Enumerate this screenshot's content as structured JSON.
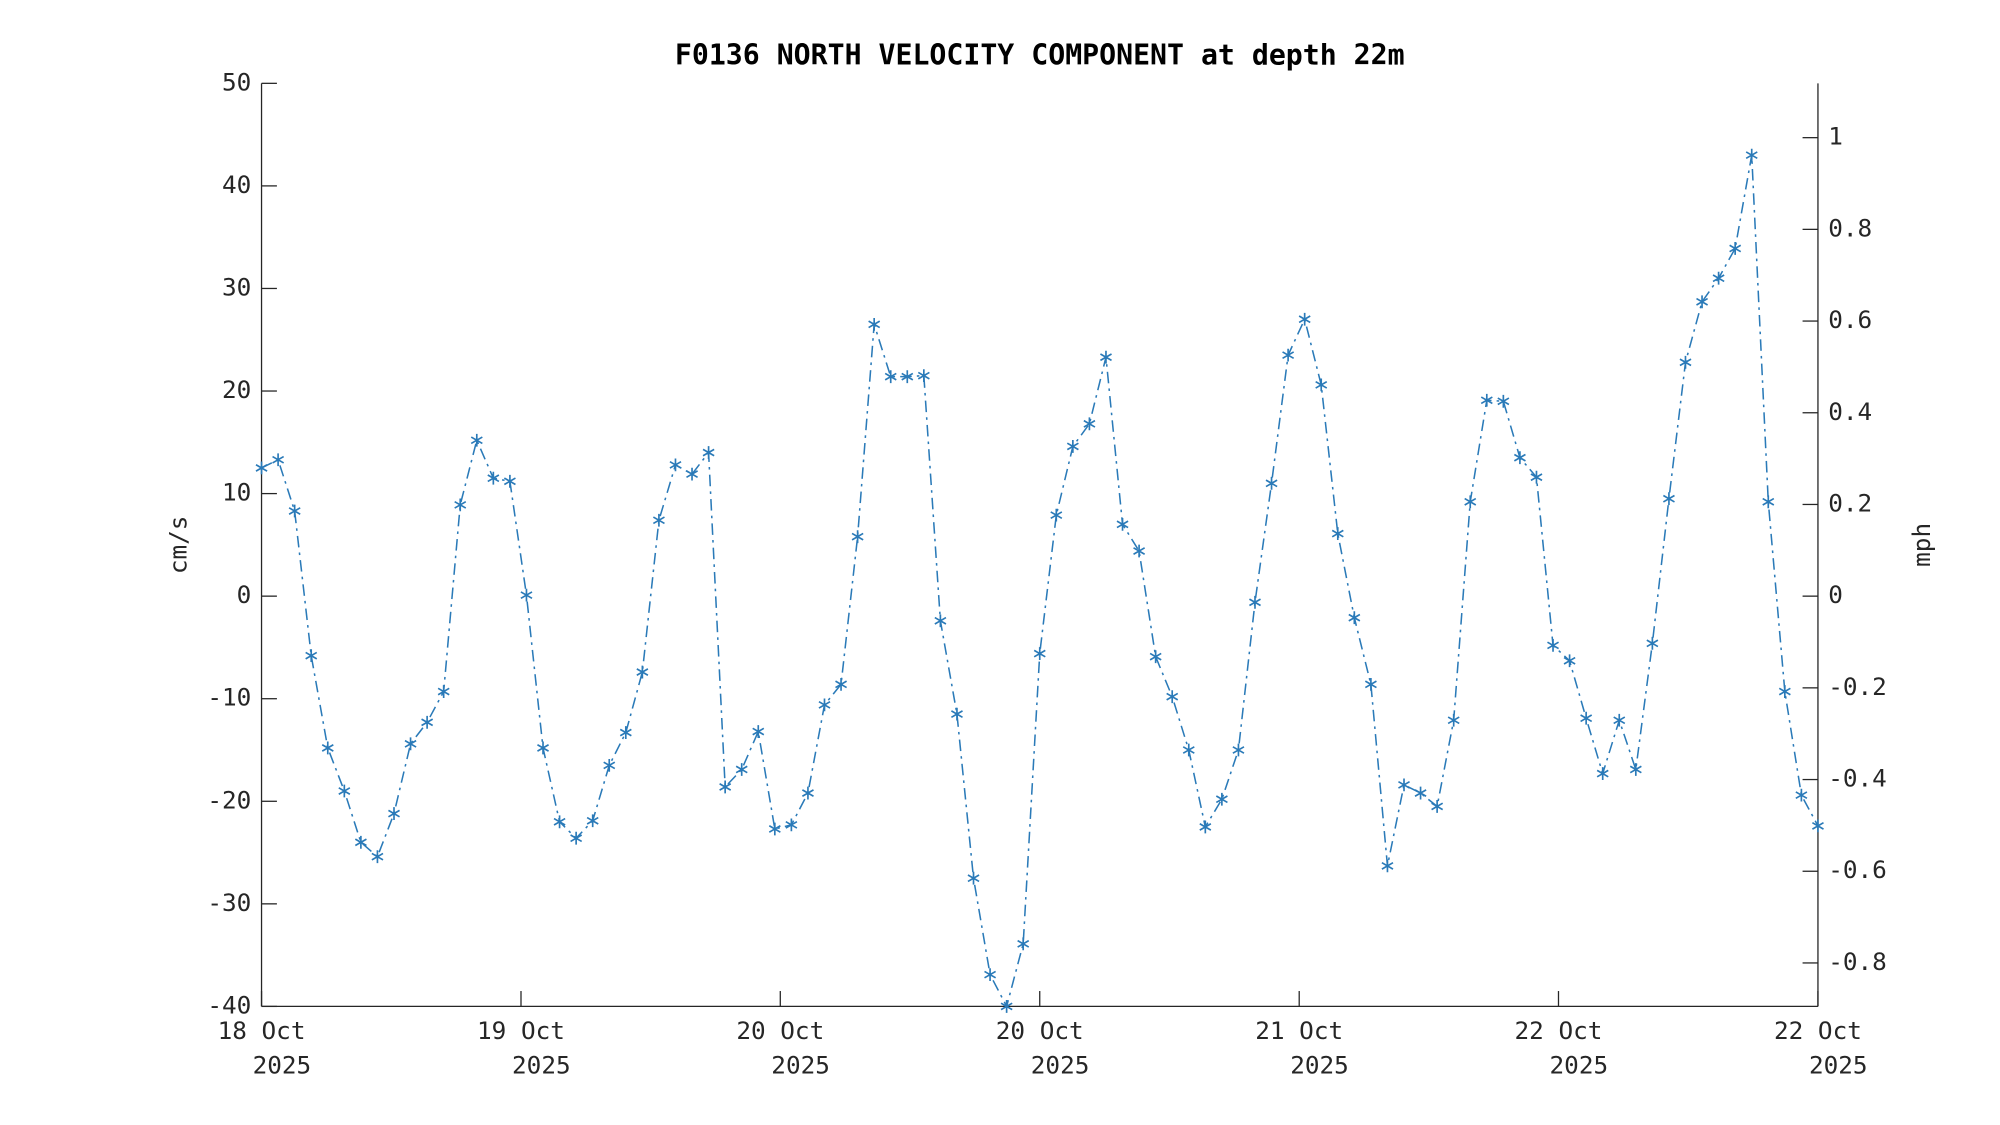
{
  "chart_data": {
    "type": "line",
    "title": "F0136 NORTH VELOCITY COMPONENT at depth 22m",
    "ylabel": "cm/s",
    "y2label": "mph",
    "color": "#2a7ab8",
    "marker": "*",
    "line_style": "dashdot",
    "x": [
      0,
      1,
      2,
      3,
      4,
      5,
      6,
      7,
      8,
      9,
      10,
      11,
      12,
      13,
      14,
      15,
      16,
      17,
      18,
      19,
      20,
      21,
      22,
      23,
      24,
      25,
      26,
      27,
      28,
      29,
      30,
      31,
      32,
      33,
      34,
      35,
      36,
      37,
      38,
      39,
      40,
      41,
      42,
      43,
      44,
      45,
      46,
      47,
      48,
      49,
      50,
      51,
      52,
      53,
      54,
      55,
      56,
      57,
      58,
      59,
      60,
      61,
      62,
      63,
      64,
      65,
      66,
      67,
      68,
      69,
      70,
      71,
      72,
      73,
      74,
      75,
      76,
      77,
      78,
      79,
      80,
      81,
      82,
      83,
      84,
      85,
      86,
      87,
      88,
      89,
      90,
      91,
      92,
      93,
      94
    ],
    "values": [
      12.5,
      13.3,
      8.3,
      -5.8,
      -14.8,
      -19,
      -24,
      -25.4,
      -21.2,
      -14.4,
      -12.3,
      -9.3,
      8.9,
      15.2,
      11.5,
      11.2,
      0.1,
      -14.8,
      -22,
      -23.6,
      -21.9,
      -16.5,
      -13.3,
      -7.4,
      7.4,
      12.8,
      11.9,
      14,
      -18.6,
      -16.9,
      -13.2,
      -22.7,
      -22.3,
      -19.2,
      -10.6,
      -8.6,
      5.8,
      26.5,
      21.4,
      21.4,
      21.5,
      -2.4,
      -11.5,
      -27.5,
      -36.9,
      -40,
      -33.9,
      -5.6,
      7.9,
      14.6,
      16.8,
      23.3,
      7,
      4.4,
      -5.9,
      -9.8,
      -15,
      -22.5,
      -19.8,
      -15,
      -0.6,
      11,
      23.5,
      27,
      20.6,
      6.1,
      -2.1,
      -8.6,
      -26.3,
      -18.4,
      -19.2,
      -20.5,
      -12.1,
      9.2,
      19.1,
      19,
      13.5,
      11.6,
      -4.8,
      -6.3,
      -11.9,
      -17.3,
      -12.1,
      -16.9,
      -4.6,
      9.5,
      22.8,
      28.7,
      31,
      33.9,
      43,
      9.2,
      -9.3,
      -19.4,
      -22.4
    ],
    "xlim": [
      0,
      94
    ],
    "xticks": [
      {
        "value": 0,
        "label": [
          "18 Oct",
          "2025"
        ]
      },
      {
        "value": 15.67,
        "label": [
          "19 Oct",
          "2025"
        ]
      },
      {
        "value": 31.33,
        "label": [
          "20 Oct",
          "2025"
        ]
      },
      {
        "value": 47,
        "label": [
          "20 Oct",
          "2025"
        ]
      },
      {
        "value": 62.67,
        "label": [
          "21 Oct",
          "2025"
        ]
      },
      {
        "value": 78.33,
        "label": [
          "22 Oct",
          "2025"
        ]
      },
      {
        "value": 94,
        "label": [
          "22 Oct",
          "2025"
        ]
      }
    ],
    "ylim": [
      -40,
      50
    ],
    "yticks": [
      -40,
      -30,
      -20,
      -10,
      0,
      10,
      20,
      30,
      40,
      50
    ],
    "y2lim": [
      -0.8948,
      1.1185
    ],
    "y2ticks": [
      -0.8,
      -0.6,
      -0.4,
      -0.2,
      0,
      0.2,
      0.4,
      0.6,
      0.8,
      1
    ],
    "grid": false
  }
}
